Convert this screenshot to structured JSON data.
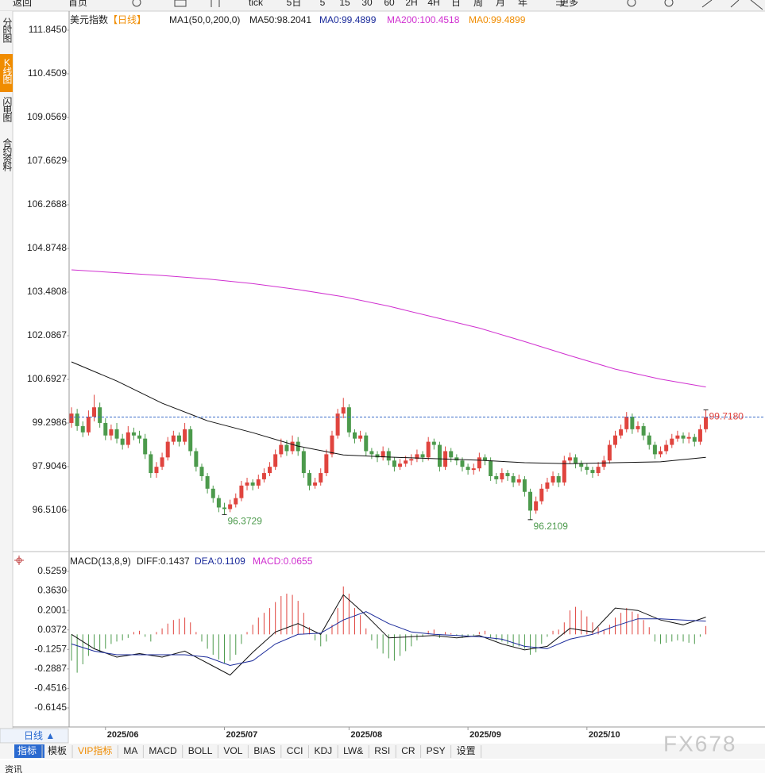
{
  "ui": {
    "toolbar": [
      "返回",
      "首页",
      "tick",
      "5日",
      "5",
      "15",
      "30",
      "60",
      "2H",
      "4H",
      "日",
      "周",
      "月",
      "年",
      "更多"
    ],
    "sidebar": [
      "分时图",
      "K线图",
      "闪电图",
      "合约资料"
    ],
    "period": "日线 ▲",
    "tabs": [
      "指标",
      "模板",
      "VIP指标",
      "MA",
      "MACD",
      "BOLL",
      "VOL",
      "BIAS",
      "CCI",
      "KDJ",
      "LW&",
      "RSI",
      "CR",
      "PSY",
      "设置"
    ],
    "watermark": "FX678",
    "footer": "资讯"
  },
  "chart_data": [
    {
      "type": "candlestick",
      "title": "美元指数",
      "subtitle": "【日线】",
      "legend": [
        {
          "text": "MA1(50,0,200,0)",
          "color": "#222222"
        },
        {
          "text": "MA50:98.2041",
          "color": "#222222"
        },
        {
          "text": "MA0:99.4899",
          "color": "#1a2a9a"
        },
        {
          "text": "MA200:100.4518",
          "color": "#d030d0"
        },
        {
          "text": "MA0:99.4899",
          "color": "#f08c00"
        }
      ],
      "up_color": "#e0443e",
      "down_color": "#4c9a4c",
      "categories": [
        null,
        null,
        null,
        null,
        null,
        null,
        "2025/06",
        null,
        null,
        null,
        null,
        null,
        null,
        null,
        null,
        null,
        null,
        null,
        null,
        null,
        null,
        null,
        null,
        null,
        null,
        null,
        null,
        "2025/07",
        null,
        null,
        null,
        null,
        null,
        null,
        null,
        null,
        null,
        null,
        null,
        null,
        null,
        null,
        null,
        null,
        null,
        null,
        null,
        null,
        null,
        "2025/08",
        null,
        null,
        null,
        null,
        null,
        null,
        null,
        null,
        null,
        null,
        null,
        null,
        null,
        null,
        null,
        null,
        null,
        null,
        null,
        null,
        "2025/09",
        null,
        null,
        null,
        null,
        null,
        null,
        null,
        null,
        null,
        null,
        null,
        null,
        null,
        null,
        null,
        null,
        null,
        null,
        null,
        null,
        "2025/10",
        null,
        null,
        null,
        null,
        null,
        null,
        null,
        null,
        null,
        null,
        null,
        null,
        null,
        null,
        null,
        null,
        null,
        null,
        null,
        null,
        null
      ],
      "candles": [
        [
          99.3,
          99.8,
          99.15,
          99.6
        ],
        [
          99.6,
          99.75,
          99.05,
          99.2
        ],
        [
          99.2,
          99.35,
          98.85,
          99.0
        ],
        [
          99.0,
          99.7,
          98.9,
          99.5
        ],
        [
          99.5,
          100.2,
          99.35,
          99.8
        ],
        [
          99.8,
          99.95,
          99.15,
          99.3
        ],
        [
          99.3,
          99.45,
          98.75,
          98.9
        ],
        [
          98.9,
          99.25,
          98.75,
          99.1
        ],
        [
          99.1,
          99.3,
          98.65,
          98.8
        ],
        [
          98.8,
          98.95,
          98.45,
          98.6
        ],
        [
          98.6,
          99.2,
          98.5,
          99.0
        ],
        [
          99.0,
          99.15,
          98.75,
          98.9
        ],
        [
          98.9,
          99.05,
          98.65,
          98.8
        ],
        [
          98.8,
          98.95,
          98.15,
          98.3
        ],
        [
          98.3,
          98.4,
          97.55,
          97.7
        ],
        [
          97.7,
          98.05,
          97.55,
          97.9
        ],
        [
          97.9,
          98.35,
          97.8,
          98.2
        ],
        [
          98.2,
          98.85,
          98.1,
          98.7
        ],
        [
          98.7,
          99.05,
          98.6,
          98.9
        ],
        [
          98.9,
          99.0,
          98.55,
          98.7
        ],
        [
          98.7,
          99.3,
          98.6,
          99.1
        ],
        [
          99.1,
          99.2,
          98.25,
          98.4
        ],
        [
          98.4,
          98.5,
          97.75,
          97.9
        ],
        [
          97.9,
          98.0,
          97.45,
          97.6
        ],
        [
          97.6,
          97.7,
          97.05,
          97.2
        ],
        [
          97.2,
          97.3,
          96.75,
          96.9
        ],
        [
          96.9,
          97.0,
          96.45,
          96.6
        ],
        [
          96.6,
          96.75,
          96.3729,
          96.55
        ],
        [
          96.55,
          96.85,
          96.45,
          96.7
        ],
        [
          96.7,
          97.05,
          96.6,
          96.9
        ],
        [
          96.9,
          97.45,
          96.8,
          97.3
        ],
        [
          97.3,
          97.55,
          97.15,
          97.4
        ],
        [
          97.4,
          97.5,
          97.15,
          97.3
        ],
        [
          97.3,
          97.65,
          97.2,
          97.5
        ],
        [
          97.5,
          97.85,
          97.4,
          97.7
        ],
        [
          97.7,
          98.05,
          97.6,
          97.9
        ],
        [
          97.9,
          98.45,
          97.8,
          98.3
        ],
        [
          98.3,
          98.8,
          98.2,
          98.6
        ],
        [
          98.6,
          98.75,
          98.25,
          98.4
        ],
        [
          98.4,
          98.9,
          98.3,
          98.7
        ],
        [
          98.7,
          98.85,
          98.25,
          98.4
        ],
        [
          98.4,
          98.5,
          97.55,
          97.7
        ],
        [
          97.7,
          97.8,
          97.15,
          97.3
        ],
        [
          97.3,
          97.55,
          97.2,
          97.4
        ],
        [
          97.4,
          97.85,
          97.3,
          97.7
        ],
        [
          97.7,
          98.45,
          97.6,
          98.3
        ],
        [
          98.3,
          99.05,
          98.2,
          98.9
        ],
        [
          98.9,
          99.75,
          98.8,
          99.6
        ],
        [
          99.6,
          100.1,
          99.45,
          99.8
        ],
        [
          99.8,
          99.9,
          98.85,
          99.0
        ],
        [
          99.0,
          99.1,
          98.65,
          98.8
        ],
        [
          98.8,
          99.05,
          98.7,
          98.9
        ],
        [
          98.9,
          99.0,
          98.25,
          98.4
        ],
        [
          98.4,
          98.5,
          98.15,
          98.3
        ],
        [
          98.3,
          98.4,
          98.05,
          98.2
        ],
        [
          98.2,
          98.55,
          98.1,
          98.4
        ],
        [
          98.4,
          98.5,
          97.95,
          98.1
        ],
        [
          98.1,
          98.2,
          97.75,
          97.9
        ],
        [
          97.9,
          98.15,
          97.8,
          98.0
        ],
        [
          98.0,
          98.25,
          97.9,
          98.1
        ],
        [
          98.1,
          98.3,
          97.95,
          98.15
        ],
        [
          98.15,
          98.45,
          98.05,
          98.3
        ],
        [
          98.3,
          98.4,
          98.05,
          98.2
        ],
        [
          98.2,
          98.85,
          98.1,
          98.7
        ],
        [
          98.7,
          98.8,
          98.45,
          98.6
        ],
        [
          98.6,
          98.7,
          97.75,
          97.9
        ],
        [
          97.9,
          98.55,
          97.8,
          98.4
        ],
        [
          98.4,
          98.5,
          98.05,
          98.2
        ],
        [
          98.2,
          98.3,
          97.95,
          98.1
        ],
        [
          98.1,
          98.2,
          97.75,
          97.9
        ],
        [
          97.9,
          98.0,
          97.65,
          97.8
        ],
        [
          97.8,
          98.0,
          97.65,
          97.85
        ],
        [
          97.85,
          98.35,
          97.75,
          98.2
        ],
        [
          98.2,
          98.3,
          97.95,
          98.1
        ],
        [
          98.1,
          98.2,
          97.45,
          97.6
        ],
        [
          97.6,
          97.7,
          97.35,
          97.5
        ],
        [
          97.5,
          97.85,
          97.4,
          97.7
        ],
        [
          97.7,
          97.8,
          97.45,
          97.6
        ],
        [
          97.6,
          97.7,
          97.25,
          97.4
        ],
        [
          97.4,
          97.65,
          97.3,
          97.5
        ],
        [
          97.5,
          97.6,
          96.95,
          97.1
        ],
        [
          97.1,
          97.2,
          96.2109,
          96.5
        ],
        [
          96.5,
          96.95,
          96.4,
          96.8
        ],
        [
          96.8,
          97.35,
          96.7,
          97.2
        ],
        [
          97.2,
          97.55,
          97.1,
          97.4
        ],
        [
          97.4,
          97.75,
          97.3,
          97.6
        ],
        [
          97.6,
          97.7,
          97.25,
          97.4
        ],
        [
          97.4,
          98.25,
          97.3,
          98.1
        ],
        [
          98.1,
          98.35,
          98.0,
          98.2
        ],
        [
          98.2,
          98.3,
          97.85,
          98.0
        ],
        [
          98.0,
          98.1,
          97.75,
          97.9
        ],
        [
          97.9,
          98.0,
          97.65,
          97.8
        ],
        [
          97.8,
          97.9,
          97.55,
          97.7
        ],
        [
          97.7,
          98.05,
          97.6,
          97.9
        ],
        [
          97.9,
          98.25,
          97.8,
          98.1
        ],
        [
          98.1,
          98.75,
          98.0,
          98.6
        ],
        [
          98.6,
          99.05,
          98.5,
          98.9
        ],
        [
          98.9,
          99.25,
          98.8,
          99.1
        ],
        [
          99.1,
          99.65,
          99.0,
          99.5
        ],
        [
          99.5,
          99.6,
          98.95,
          99.1
        ],
        [
          99.1,
          99.35,
          99.0,
          99.2
        ],
        [
          99.2,
          99.3,
          98.75,
          98.9
        ],
        [
          98.9,
          99.0,
          98.45,
          98.6
        ],
        [
          98.6,
          98.7,
          98.15,
          98.3
        ],
        [
          98.3,
          98.55,
          98.2,
          98.4
        ],
        [
          98.4,
          98.75,
          98.3,
          98.6
        ],
        [
          98.6,
          98.95,
          98.5,
          98.8
        ],
        [
          98.8,
          99.05,
          98.7,
          98.9
        ],
        [
          98.9,
          99.0,
          98.65,
          98.8
        ],
        [
          98.8,
          99.0,
          98.65,
          98.85
        ],
        [
          98.85,
          98.95,
          98.55,
          98.7
        ],
        [
          98.7,
          99.25,
          98.6,
          99.1
        ],
        [
          99.1,
          99.718,
          99.0,
          99.4899
        ]
      ],
      "series": [
        {
          "color": "#111111",
          "x": [
            0,
            8,
            16,
            24,
            32,
            40,
            48,
            56,
            64,
            72,
            80,
            88,
            96,
            104,
            112
          ],
          "values": [
            101.25,
            100.64,
            99.93,
            99.37,
            98.99,
            98.56,
            98.28,
            98.21,
            98.16,
            98.11,
            98.03,
            98.0,
            98.03,
            98.06,
            98.2
          ]
        },
        {
          "color": "#d030d0",
          "x": [
            0,
            8,
            16,
            24,
            32,
            40,
            48,
            56,
            64,
            72,
            80,
            88,
            96,
            104,
            112
          ],
          "values": [
            104.19,
            104.1,
            104.01,
            103.9,
            103.75,
            103.56,
            103.33,
            103.03,
            102.68,
            102.33,
            101.9,
            101.45,
            101.02,
            100.7,
            100.45
          ]
        }
      ],
      "price_line": {
        "value": 99.4899,
        "color": "#3a6cc8"
      },
      "annotations": [
        {
          "text": "96.3729",
          "x": 27,
          "y": 96.3729,
          "color": "#4c9a4c"
        },
        {
          "text": "96.2109",
          "x": 81,
          "y": 96.2109,
          "color": "#4c9a4c"
        },
        {
          "text": "99.7180",
          "x": 112,
          "y": 99.718,
          "color": "#e0443e"
        }
      ],
      "ylim": [
        95.319,
        112.352
      ],
      "yticks": [
        {
          "value": 111.845,
          "label": "111.8450"
        },
        110.4509,
        109.0569,
        107.6629,
        106.2688,
        104.8748,
        103.4808,
        102.0867,
        100.6927,
        99.2986,
        97.9046,
        96.5106
      ]
    },
    {
      "type": "macd",
      "title": "MACD(13,8,9)",
      "legend": [
        {
          "text": "DIFF:0.1437",
          "color": "#222222"
        },
        {
          "text": "DEA:0.1109",
          "color": "#1a2a9a"
        },
        {
          "text": "MACD:0.0655",
          "color": "#d030d0"
        }
      ],
      "up_color": "#e0443e",
      "down_color": "#4c9a4c",
      "histogram": [
        -0.22,
        -0.32,
        -0.25,
        -0.18,
        -0.12,
        -0.15,
        -0.12,
        -0.08,
        -0.06,
        -0.05,
        -0.03,
        0.02,
        0.03,
        -0.02,
        -0.06,
        0.02,
        0.05,
        0.09,
        0.12,
        0.13,
        0.14,
        0.1,
        0.02,
        -0.06,
        -0.12,
        -0.17,
        -0.21,
        -0.24,
        -0.22,
        -0.17,
        -0.08,
        0.02,
        0.08,
        0.14,
        0.18,
        0.22,
        0.27,
        0.32,
        0.34,
        0.33,
        0.28,
        0.18,
        0.06,
        -0.05,
        -0.1,
        -0.06,
        0.08,
        0.22,
        0.4,
        0.34,
        0.22,
        0.16,
        0.05,
        -0.05,
        -0.12,
        -0.16,
        -0.2,
        -0.22,
        -0.18,
        -0.14,
        -0.1,
        -0.05,
        -0.02,
        0.03,
        0.04,
        -0.03,
        0.02,
        0.01,
        -0.01,
        -0.03,
        -0.02,
        -0.01,
        0.02,
        0.03,
        -0.03,
        -0.05,
        -0.06,
        -0.08,
        -0.1,
        -0.1,
        -0.12,
        -0.17,
        -0.15,
        -0.08,
        -0.02,
        0.03,
        0.04,
        0.1,
        0.2,
        0.23,
        0.2,
        0.15,
        0.1,
        0.06,
        0.04,
        0.08,
        0.14,
        0.18,
        0.22,
        0.19,
        0.17,
        0.12,
        0.06,
        -0.06,
        -0.08,
        -0.07,
        -0.06,
        -0.05,
        -0.06,
        -0.07,
        -0.08,
        -0.02,
        0.07
      ],
      "series": [
        {
          "color": "#111111",
          "x": [
            0,
            4,
            8,
            12,
            16,
            20,
            24,
            28,
            32,
            36,
            40,
            44,
            48,
            52,
            56,
            60,
            64,
            68,
            72,
            76,
            80,
            84,
            88,
            92,
            96,
            100,
            104,
            108,
            112
          ],
          "values": [
            0.0,
            -0.12,
            -0.19,
            -0.16,
            -0.19,
            -0.14,
            -0.24,
            -0.34,
            -0.15,
            0.02,
            0.09,
            0.0,
            0.33,
            0.16,
            -0.03,
            -0.02,
            -0.01,
            -0.03,
            -0.01,
            -0.08,
            -0.13,
            -0.1,
            0.05,
            0.02,
            0.22,
            0.2,
            0.12,
            0.08,
            0.1437
          ]
        },
        {
          "color": "#1a2a9a",
          "x": [
            0,
            4,
            8,
            12,
            16,
            20,
            24,
            28,
            32,
            36,
            40,
            44,
            48,
            52,
            56,
            60,
            64,
            68,
            72,
            76,
            80,
            84,
            88,
            92,
            96,
            100,
            104,
            108,
            112
          ],
          "values": [
            -0.08,
            -0.14,
            -0.17,
            -0.17,
            -0.17,
            -0.17,
            -0.19,
            -0.26,
            -0.22,
            -0.08,
            0.0,
            0.01,
            0.12,
            0.19,
            0.09,
            0.02,
            0.0,
            -0.01,
            -0.02,
            -0.04,
            -0.1,
            -0.12,
            -0.04,
            0.0,
            0.07,
            0.13,
            0.13,
            0.12,
            0.1109
          ]
        }
      ],
      "ylim": [
        -0.7471,
        0.6585
      ],
      "yticks": [
        0.5259,
        {
          "value": 0.363,
          "label": "0.3630"
        },
        0.2001,
        0.0372,
        -0.1257,
        -0.2887,
        -0.4516,
        -0.6145
      ]
    }
  ]
}
